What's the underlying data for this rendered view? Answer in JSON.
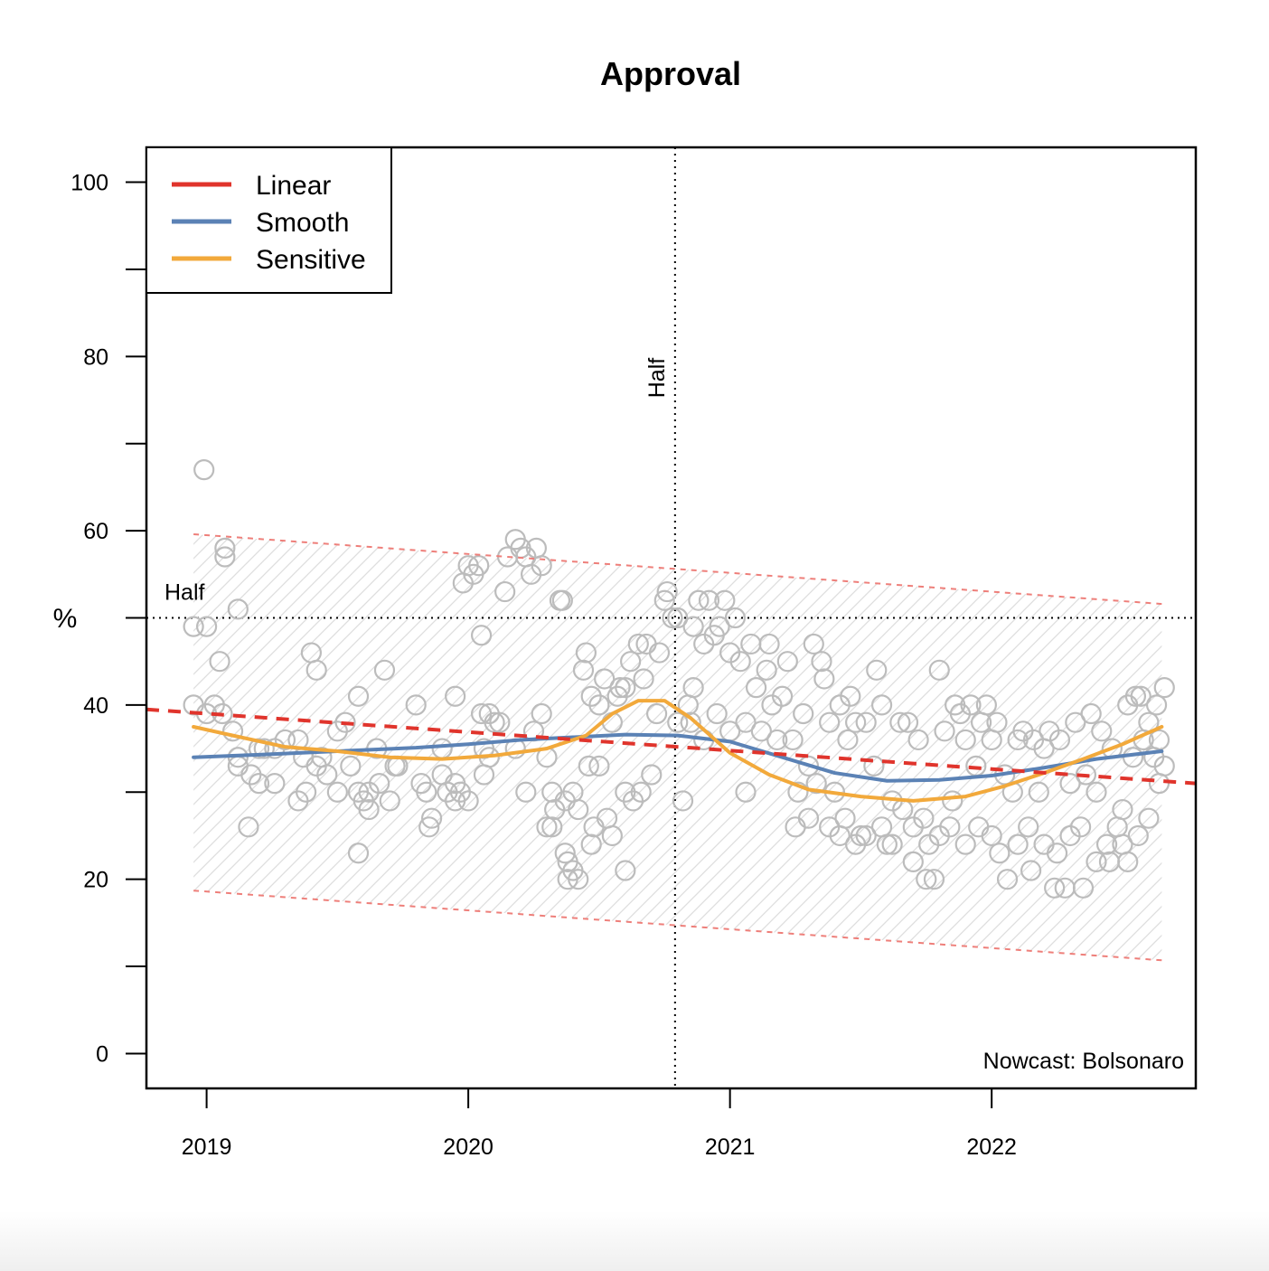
{
  "chart_data": {
    "type": "scatter",
    "title": "Approval",
    "ylabel": "%",
    "xlabel": "",
    "annotation": "Nowcast: Bolsonaro",
    "xlim": [
      2018.77,
      2022.78
    ],
    "ylim": [
      -4,
      104
    ],
    "x_ticks": [
      2019,
      2020,
      2021,
      2022
    ],
    "x_tick_labels": [
      "2019",
      "2020",
      "2021",
      "2022"
    ],
    "y_ticks": [
      0,
      10,
      20,
      30,
      40,
      50,
      60,
      70,
      80,
      90,
      100
    ],
    "y_tick_labels": [
      "0",
      "20",
      "40",
      "60",
      "80",
      "100"
    ],
    "grid": false,
    "reference_lines": {
      "horizontal": {
        "y": 50,
        "label": "Half"
      },
      "vertical": {
        "x": 2020.79,
        "label": "Half"
      }
    },
    "legend": {
      "position": "top-left",
      "entries": [
        {
          "label": "Linear",
          "color": "#e0342c"
        },
        {
          "label": "Smooth",
          "color": "#5b82b5"
        },
        {
          "label": "Sensitive",
          "color": "#f2a93b"
        }
      ]
    },
    "series": [
      {
        "name": "Linear",
        "type": "line",
        "dashed": true,
        "color": "#e0342c",
        "x": [
          2018.77,
          2022.78
        ],
        "y": [
          39.5,
          31.0
        ]
      },
      {
        "name": "Smooth",
        "type": "line",
        "color": "#5b82b5",
        "x": [
          2018.95,
          2019.2,
          2019.5,
          2019.8,
          2020.0,
          2020.2,
          2020.4,
          2020.6,
          2020.8,
          2021.0,
          2021.2,
          2021.4,
          2021.6,
          2021.8,
          2022.0,
          2022.2,
          2022.4,
          2022.65
        ],
        "y": [
          34.0,
          34.3,
          34.7,
          35.1,
          35.5,
          36.0,
          36.3,
          36.6,
          36.5,
          35.8,
          34.0,
          32.2,
          31.3,
          31.4,
          31.9,
          32.8,
          33.8,
          34.7
        ]
      },
      {
        "name": "Sensitive",
        "type": "line",
        "color": "#f2a93b",
        "x": [
          2018.95,
          2019.1,
          2019.3,
          2019.5,
          2019.7,
          2019.9,
          2020.1,
          2020.3,
          2020.45,
          2020.55,
          2020.65,
          2020.75,
          2020.85,
          2021.0,
          2021.15,
          2021.3,
          2021.5,
          2021.7,
          2021.9,
          2022.05,
          2022.2,
          2022.35,
          2022.5,
          2022.65
        ],
        "y": [
          37.5,
          36.5,
          35.2,
          34.7,
          34.0,
          33.8,
          34.2,
          35.0,
          36.5,
          39.0,
          40.5,
          40.5,
          38.5,
          34.5,
          32.0,
          30.3,
          29.5,
          29.0,
          29.5,
          30.7,
          32.2,
          33.8,
          35.5,
          37.5
        ]
      },
      {
        "name": "Upper band",
        "type": "line",
        "dashed": true,
        "color": "#ee7f7a",
        "x": [
          2018.95,
          2022.65
        ],
        "y": [
          59.6,
          51.6
        ]
      },
      {
        "name": "Lower band",
        "type": "line",
        "dashed": true,
        "color": "#ee7f7a",
        "x": [
          2018.95,
          2022.65
        ],
        "y": [
          18.7,
          10.7
        ]
      },
      {
        "name": "Polls",
        "type": "scatter",
        "color": "#bcbcbc",
        "points": [
          [
            2018.95,
            49
          ],
          [
            2018.95,
            40
          ],
          [
            2018.99,
            67
          ],
          [
            2019.0,
            49
          ],
          [
            2019.0,
            39
          ],
          [
            2019.03,
            40
          ],
          [
            2019.05,
            45
          ],
          [
            2019.06,
            39
          ],
          [
            2019.07,
            58
          ],
          [
            2019.07,
            57
          ],
          [
            2019.1,
            37
          ],
          [
            2019.12,
            51
          ],
          [
            2019.12,
            34
          ],
          [
            2019.12,
            33
          ],
          [
            2019.16,
            26
          ],
          [
            2019.17,
            32
          ],
          [
            2019.2,
            31
          ],
          [
            2019.2,
            35
          ],
          [
            2019.22,
            35
          ],
          [
            2019.26,
            35
          ],
          [
            2019.26,
            31
          ],
          [
            2019.3,
            36
          ],
          [
            2019.35,
            36
          ],
          [
            2019.35,
            29
          ],
          [
            2019.37,
            34
          ],
          [
            2019.38,
            30
          ],
          [
            2019.4,
            46
          ],
          [
            2019.42,
            44
          ],
          [
            2019.42,
            33
          ],
          [
            2019.44,
            34
          ],
          [
            2019.46,
            32
          ],
          [
            2019.5,
            37
          ],
          [
            2019.5,
            30
          ],
          [
            2019.53,
            38
          ],
          [
            2019.55,
            33
          ],
          [
            2019.58,
            41
          ],
          [
            2019.58,
            30
          ],
          [
            2019.58,
            23
          ],
          [
            2019.6,
            29
          ],
          [
            2019.62,
            28
          ],
          [
            2019.62,
            30
          ],
          [
            2019.65,
            35
          ],
          [
            2019.66,
            31
          ],
          [
            2019.68,
            44
          ],
          [
            2019.7,
            29
          ],
          [
            2019.72,
            33
          ],
          [
            2019.73,
            33
          ],
          [
            2019.8,
            40
          ],
          [
            2019.82,
            31
          ],
          [
            2019.84,
            30
          ],
          [
            2019.85,
            26
          ],
          [
            2019.86,
            27
          ],
          [
            2019.9,
            35
          ],
          [
            2019.9,
            32
          ],
          [
            2019.92,
            30
          ],
          [
            2019.95,
            41
          ],
          [
            2019.95,
            31
          ],
          [
            2019.95,
            29
          ],
          [
            2019.97,
            30
          ],
          [
            2020.0,
            29
          ],
          [
            2019.98,
            54
          ],
          [
            2020.0,
            56
          ],
          [
            2020.02,
            55
          ],
          [
            2020.04,
            56
          ],
          [
            2020.05,
            39
          ],
          [
            2020.06,
            35
          ],
          [
            2020.06,
            32
          ],
          [
            2020.08,
            39
          ],
          [
            2020.08,
            34
          ],
          [
            2020.1,
            38
          ],
          [
            2020.12,
            38
          ],
          [
            2020.14,
            53
          ],
          [
            2020.15,
            57
          ],
          [
            2020.18,
            59
          ],
          [
            2020.2,
            58
          ],
          [
            2020.22,
            57
          ],
          [
            2020.24,
            55
          ],
          [
            2020.26,
            58
          ],
          [
            2020.28,
            56
          ],
          [
            2020.05,
            48
          ],
          [
            2020.18,
            35
          ],
          [
            2020.22,
            30
          ],
          [
            2020.25,
            37
          ],
          [
            2020.28,
            39
          ],
          [
            2020.3,
            34
          ],
          [
            2020.3,
            26
          ],
          [
            2020.32,
            30
          ],
          [
            2020.32,
            26
          ],
          [
            2020.33,
            28
          ],
          [
            2020.35,
            52
          ],
          [
            2020.36,
            52
          ],
          [
            2020.37,
            29
          ],
          [
            2020.37,
            23
          ],
          [
            2020.38,
            22
          ],
          [
            2020.38,
            20
          ],
          [
            2020.4,
            21
          ],
          [
            2020.4,
            30
          ],
          [
            2020.42,
            20
          ],
          [
            2020.42,
            28
          ],
          [
            2020.44,
            44
          ],
          [
            2020.45,
            46
          ],
          [
            2020.46,
            33
          ],
          [
            2020.47,
            41
          ],
          [
            2020.47,
            24
          ],
          [
            2020.48,
            26
          ],
          [
            2020.5,
            40
          ],
          [
            2020.5,
            33
          ],
          [
            2020.52,
            43
          ],
          [
            2020.53,
            27
          ],
          [
            2020.55,
            38
          ],
          [
            2020.55,
            25
          ],
          [
            2020.57,
            41
          ],
          [
            2020.58,
            42
          ],
          [
            2020.6,
            42
          ],
          [
            2020.6,
            30
          ],
          [
            2020.6,
            21
          ],
          [
            2020.62,
            45
          ],
          [
            2020.63,
            29
          ],
          [
            2020.65,
            47
          ],
          [
            2020.66,
            30
          ],
          [
            2020.67,
            43
          ],
          [
            2020.68,
            47
          ],
          [
            2020.7,
            32
          ],
          [
            2020.72,
            39
          ],
          [
            2020.73,
            46
          ],
          [
            2020.75,
            52
          ],
          [
            2020.76,
            53
          ],
          [
            2020.78,
            50
          ],
          [
            2020.8,
            50
          ],
          [
            2020.8,
            38
          ],
          [
            2020.82,
            29
          ],
          [
            2020.84,
            40
          ],
          [
            2020.85,
            38
          ],
          [
            2020.86,
            49
          ],
          [
            2020.86,
            42
          ],
          [
            2020.88,
            52
          ],
          [
            2020.9,
            47
          ],
          [
            2020.9,
            36
          ],
          [
            2020.92,
            52
          ],
          [
            2020.94,
            48
          ],
          [
            2020.95,
            39
          ],
          [
            2020.96,
            49
          ],
          [
            2020.98,
            52
          ],
          [
            2021.0,
            46
          ],
          [
            2021.0,
            37
          ],
          [
            2021.02,
            50
          ],
          [
            2021.04,
            45
          ],
          [
            2021.06,
            38
          ],
          [
            2021.06,
            30
          ],
          [
            2021.08,
            47
          ],
          [
            2021.1,
            42
          ],
          [
            2021.12,
            37
          ],
          [
            2021.14,
            44
          ],
          [
            2021.15,
            47
          ],
          [
            2021.16,
            40
          ],
          [
            2021.18,
            36
          ],
          [
            2021.2,
            41
          ],
          [
            2021.22,
            45
          ],
          [
            2021.24,
            36
          ],
          [
            2021.25,
            26
          ],
          [
            2021.26,
            30
          ],
          [
            2021.28,
            39
          ],
          [
            2021.3,
            33
          ],
          [
            2021.3,
            27
          ],
          [
            2021.32,
            47
          ],
          [
            2021.33,
            31
          ],
          [
            2021.35,
            45
          ],
          [
            2021.36,
            43
          ],
          [
            2021.38,
            38
          ],
          [
            2021.38,
            26
          ],
          [
            2021.4,
            30
          ],
          [
            2021.42,
            40
          ],
          [
            2021.42,
            25
          ],
          [
            2021.44,
            27
          ],
          [
            2021.45,
            36
          ],
          [
            2021.46,
            41
          ],
          [
            2021.48,
            38
          ],
          [
            2021.48,
            24
          ],
          [
            2021.5,
            25
          ],
          [
            2021.52,
            38
          ],
          [
            2021.52,
            25
          ],
          [
            2021.55,
            33
          ],
          [
            2021.56,
            44
          ],
          [
            2021.58,
            40
          ],
          [
            2021.58,
            26
          ],
          [
            2021.6,
            24
          ],
          [
            2021.62,
            29
          ],
          [
            2021.62,
            24
          ],
          [
            2021.65,
            38
          ],
          [
            2021.66,
            28
          ],
          [
            2021.68,
            38
          ],
          [
            2021.7,
            26
          ],
          [
            2021.7,
            22
          ],
          [
            2021.72,
            36
          ],
          [
            2021.74,
            27
          ],
          [
            2021.75,
            20
          ],
          [
            2021.76,
            24
          ],
          [
            2021.78,
            20
          ],
          [
            2021.8,
            44
          ],
          [
            2021.8,
            25
          ],
          [
            2021.82,
            37
          ],
          [
            2021.84,
            26
          ],
          [
            2021.85,
            29
          ],
          [
            2021.86,
            40
          ],
          [
            2021.88,
            39
          ],
          [
            2021.9,
            36
          ],
          [
            2021.9,
            24
          ],
          [
            2021.92,
            40
          ],
          [
            2021.94,
            33
          ],
          [
            2021.95,
            26
          ],
          [
            2021.96,
            38
          ],
          [
            2021.98,
            40
          ],
          [
            2022.0,
            36
          ],
          [
            2022.0,
            25
          ],
          [
            2022.02,
            38
          ],
          [
            2022.03,
            23
          ],
          [
            2022.05,
            32
          ],
          [
            2022.06,
            20
          ],
          [
            2022.08,
            30
          ],
          [
            2022.1,
            36
          ],
          [
            2022.1,
            24
          ],
          [
            2022.12,
            37
          ],
          [
            2022.14,
            26
          ],
          [
            2022.15,
            21
          ],
          [
            2022.16,
            36
          ],
          [
            2022.18,
            30
          ],
          [
            2022.2,
            35
          ],
          [
            2022.2,
            24
          ],
          [
            2022.22,
            37
          ],
          [
            2022.24,
            19
          ],
          [
            2022.25,
            23
          ],
          [
            2022.26,
            36
          ],
          [
            2022.28,
            19
          ],
          [
            2022.3,
            31
          ],
          [
            2022.3,
            25
          ],
          [
            2022.32,
            38
          ],
          [
            2022.34,
            26
          ],
          [
            2022.35,
            19
          ],
          [
            2022.36,
            32
          ],
          [
            2022.38,
            39
          ],
          [
            2022.4,
            30
          ],
          [
            2022.4,
            22
          ],
          [
            2022.42,
            37
          ],
          [
            2022.44,
            24
          ],
          [
            2022.45,
            22
          ],
          [
            2022.46,
            35
          ],
          [
            2022.48,
            26
          ],
          [
            2022.5,
            28
          ],
          [
            2022.5,
            24
          ],
          [
            2022.52,
            40
          ],
          [
            2022.52,
            22
          ],
          [
            2022.54,
            34
          ],
          [
            2022.55,
            41
          ],
          [
            2022.56,
            25
          ],
          [
            2022.57,
            41
          ],
          [
            2022.58,
            36
          ],
          [
            2022.6,
            38
          ],
          [
            2022.6,
            27
          ],
          [
            2022.62,
            34
          ],
          [
            2022.63,
            40
          ],
          [
            2022.64,
            36
          ],
          [
            2022.64,
            31
          ],
          [
            2022.66,
            42
          ],
          [
            2022.66,
            33
          ]
        ]
      }
    ]
  }
}
